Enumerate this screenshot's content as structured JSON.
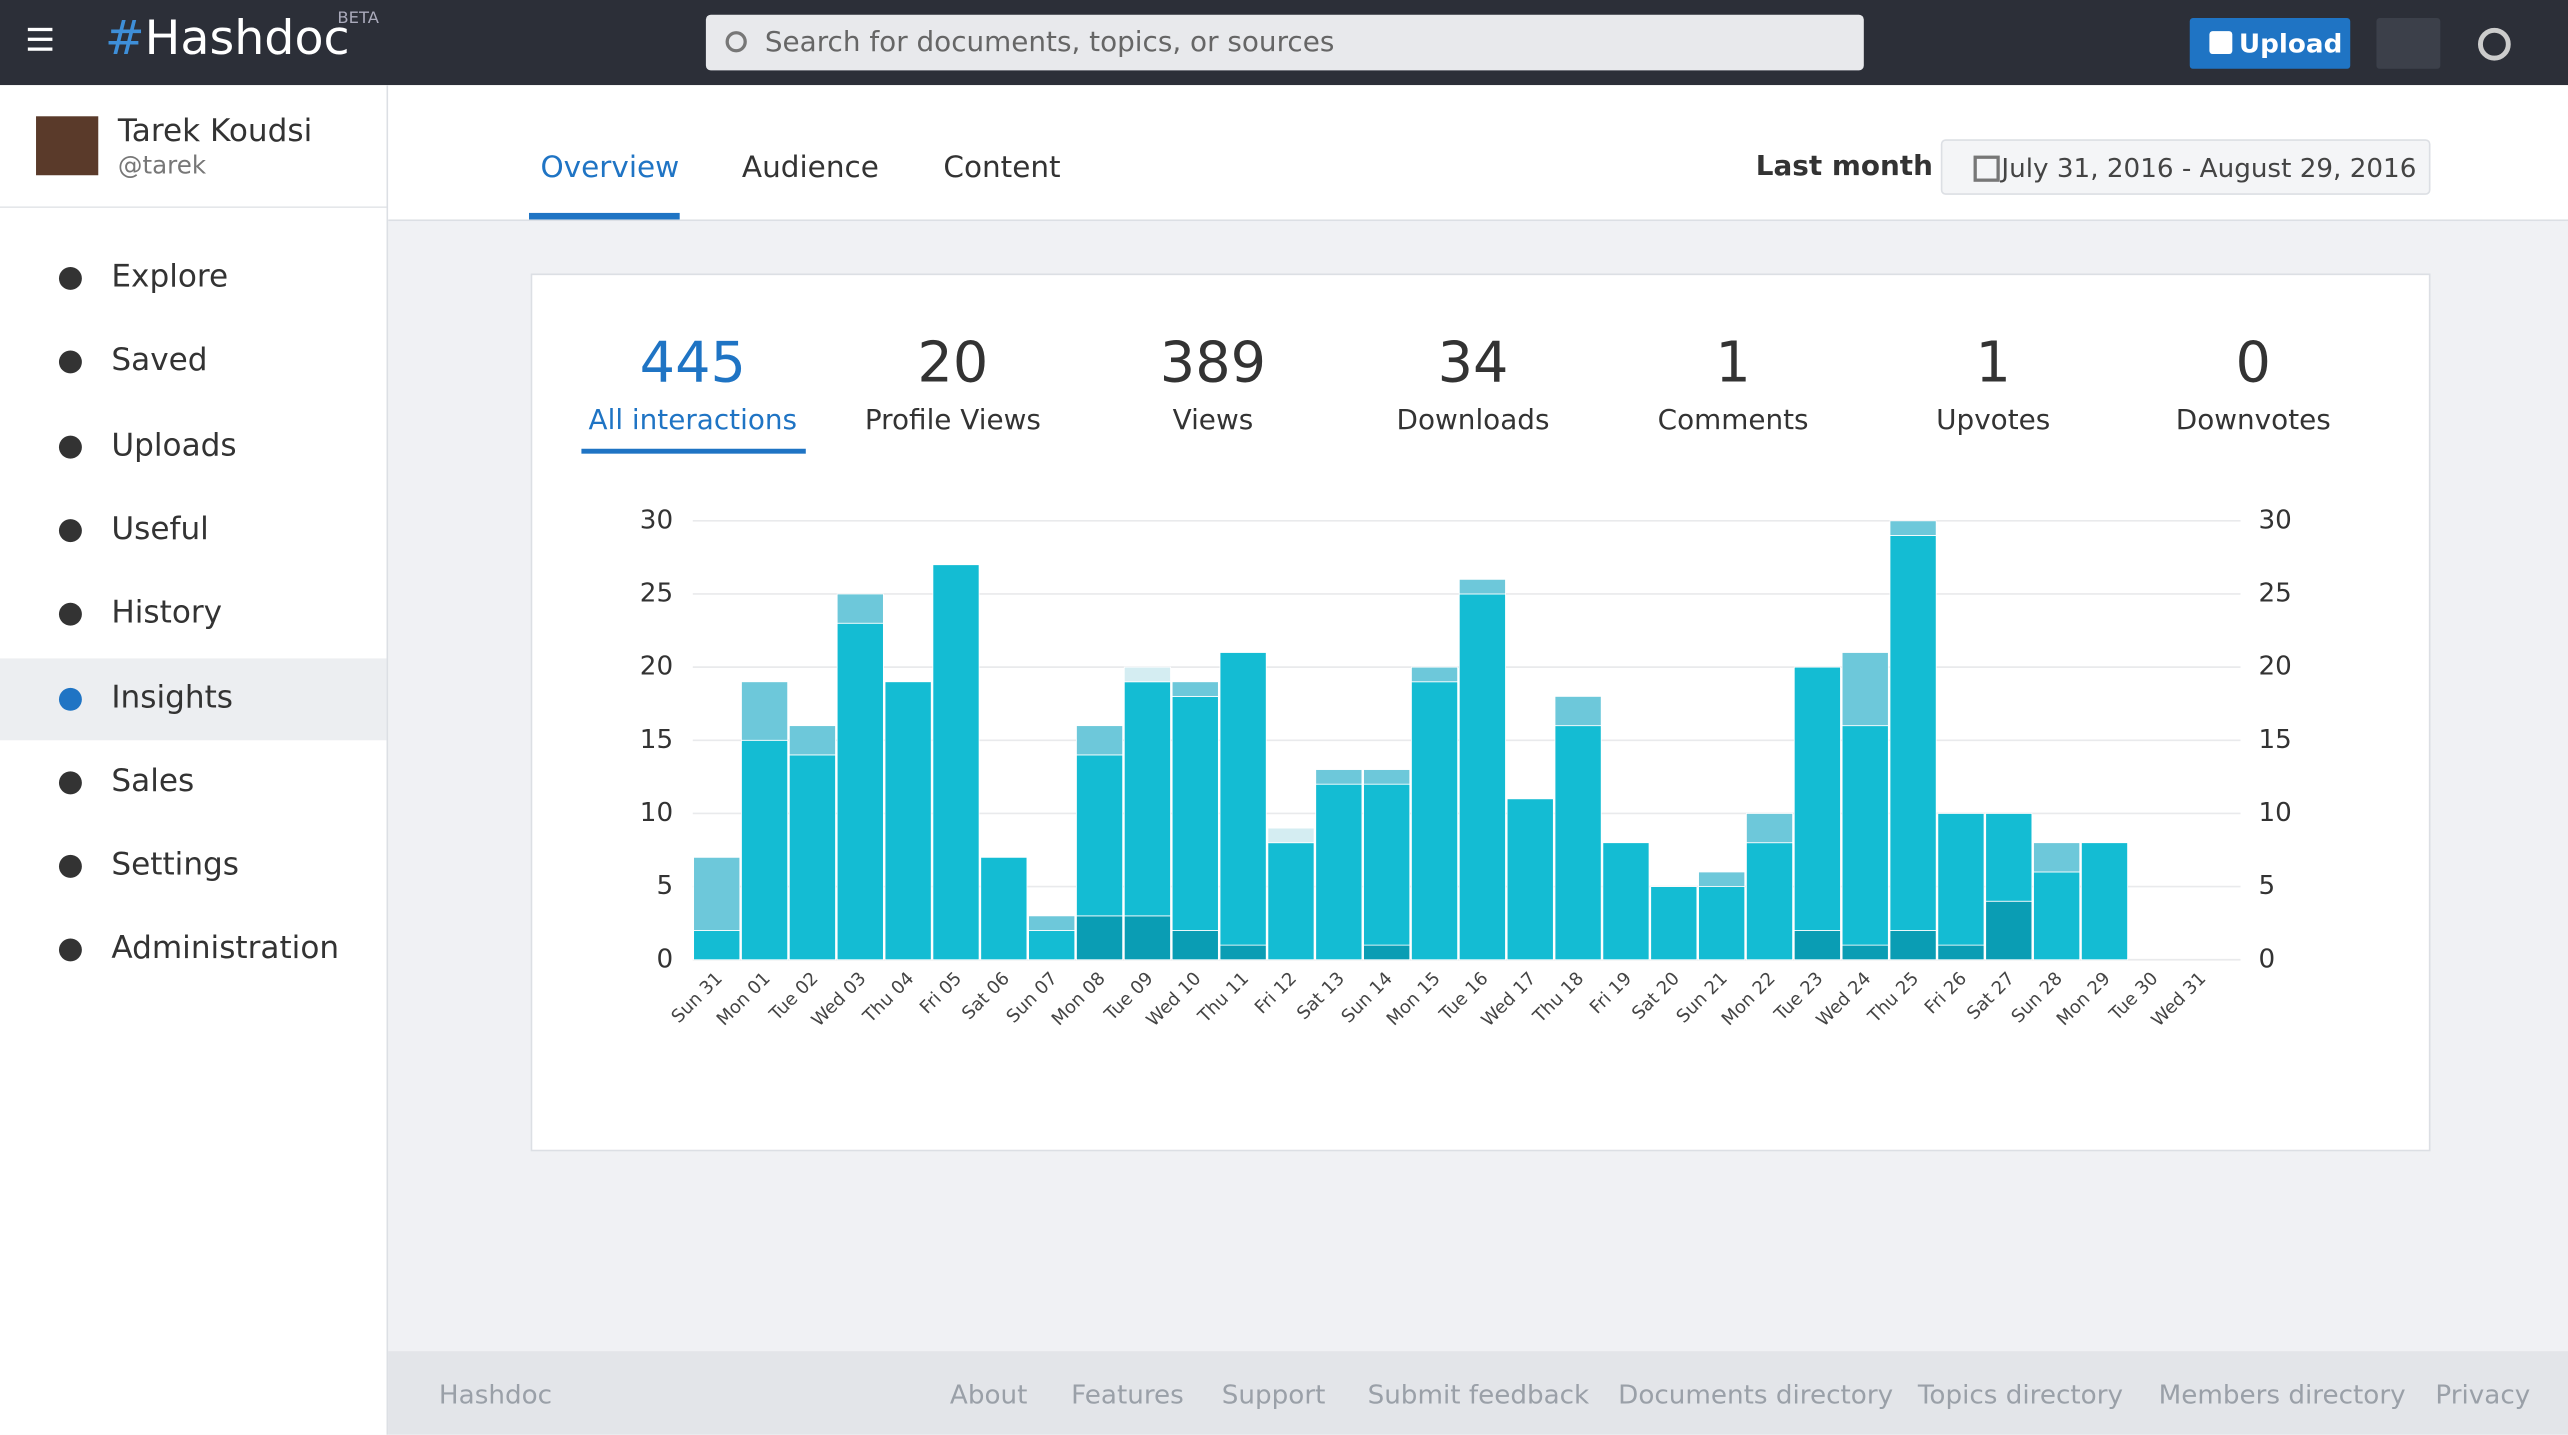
{
  "header": {
    "logo": "Hashdoc",
    "badge": "BETA",
    "search_placeholder": "Search for documents, topics, or sources",
    "upload": "Upload"
  },
  "sidebar": {
    "user": {
      "name": "Tarek Koudsi",
      "handle": "@tarek"
    },
    "menu": [
      "Explore",
      "Saved",
      "Uploads",
      "Useful",
      "History",
      "Insights",
      "Sales",
      "Settings",
      "Administration"
    ]
  },
  "tabs": [
    "Overview",
    "Audience",
    "Content"
  ],
  "range": {
    "label": "Last month",
    "dates": "July 31, 2016 - August 29, 2016"
  },
  "stats": [
    {
      "value": 445,
      "label": "All interactions"
    },
    {
      "value": 20,
      "label": "Profile Views"
    },
    {
      "value": 389,
      "label": "Views"
    },
    {
      "value": 34,
      "label": "Downloads"
    },
    {
      "value": 1,
      "label": "Comments"
    },
    {
      "value": 1,
      "label": "Upvotes"
    },
    {
      "value": 0,
      "label": "Downvotes"
    }
  ],
  "chart_data": {
    "type": "stacked_bar",
    "categories": [
      "Sun 31",
      "Mon 01",
      "Tue 02",
      "Wed 03",
      "Thu 04",
      "Fri 05",
      "Sat 06",
      "Sun 07",
      "Mon 08",
      "Tue 09",
      "Wed 10",
      "Thu 11",
      "Fri 12",
      "Sat 13",
      "Sun 14",
      "Mon 15",
      "Tue 16",
      "Wed 17",
      "Thu 18",
      "Fri 19",
      "Sat 20",
      "Sun 21",
      "Mon 22",
      "Tue 23",
      "Wed 24",
      "Thu 25",
      "Fri 26",
      "Sat 27",
      "Sun 28",
      "Mon 29",
      "Tue 30",
      "Wed 31"
    ],
    "series": [
      {
        "color": "#0a9db4",
        "values": [
          0,
          0,
          0,
          0,
          0,
          0,
          0,
          0,
          3,
          3,
          2,
          1,
          0,
          0,
          1,
          0,
          0,
          0,
          0,
          0,
          0,
          0,
          0,
          2,
          1,
          2,
          1,
          4,
          0,
          0,
          0,
          0
        ]
      },
      {
        "color": "#14bcd3",
        "values": [
          2,
          15,
          14,
          23,
          19,
          27,
          7,
          2,
          11,
          16,
          16,
          20,
          8,
          12,
          11,
          19,
          25,
          11,
          16,
          8,
          5,
          5,
          8,
          18,
          15,
          27,
          9,
          6,
          6,
          8,
          0,
          0
        ]
      },
      {
        "color": "#6dc8da",
        "values": [
          5,
          4,
          2,
          2,
          0,
          0,
          0,
          1,
          2,
          0,
          1,
          0,
          0,
          1,
          1,
          1,
          1,
          0,
          2,
          0,
          0,
          1,
          2,
          0,
          5,
          1,
          0,
          0,
          2,
          0,
          0,
          0
        ]
      },
      {
        "color": "#d4edf2",
        "values": [
          0,
          0,
          0,
          0,
          0,
          0,
          0,
          0,
          0,
          1,
          0,
          0,
          1,
          0,
          0,
          0,
          0,
          0,
          0,
          0,
          0,
          0,
          0,
          0,
          0,
          0,
          0,
          0,
          0,
          0,
          0,
          0
        ]
      }
    ],
    "ylim": [
      0,
      30
    ],
    "yticks": [
      0,
      5,
      10,
      15,
      20,
      25,
      30
    ],
    "y2lim": [
      0,
      30
    ],
    "y2ticks": [
      0,
      5,
      10,
      15,
      20,
      25,
      30
    ],
    "grid": true
  },
  "footer": {
    "brand": "Hashdoc",
    "links": [
      "About",
      "Features",
      "Support",
      "Submit feedback",
      "Documents directory",
      "Topics directory",
      "Members directory",
      "Privacy"
    ]
  }
}
